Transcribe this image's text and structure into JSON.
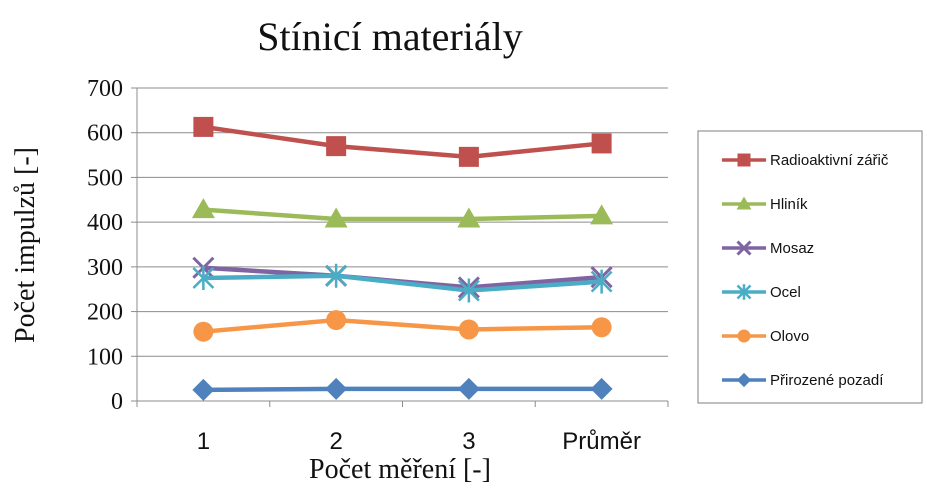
{
  "chart_data": {
    "type": "line",
    "title": "Stínicí materiály",
    "xlabel": "Počet měření [-]",
    "ylabel": "Počet impulzů [-]",
    "categories": [
      "1",
      "2",
      "3",
      "Průměr"
    ],
    "ylim": [
      0,
      700
    ],
    "yticks": [
      0,
      100,
      200,
      300,
      400,
      500,
      600,
      700
    ],
    "grid": true,
    "legend_position": "right",
    "series": [
      {
        "name": "Radioaktivní zářič",
        "values": [
          613,
          570,
          546,
          576
        ],
        "color": "#c0504d",
        "marker": "square"
      },
      {
        "name": "Hliník",
        "values": [
          428,
          407,
          407,
          414
        ],
        "color": "#9bbb59",
        "marker": "triangle"
      },
      {
        "name": "Mosaz",
        "values": [
          298,
          280,
          254,
          277
        ],
        "color": "#8064a2",
        "marker": "x"
      },
      {
        "name": "Ocel",
        "values": [
          275,
          280,
          247,
          267
        ],
        "color": "#4bacc6",
        "marker": "star"
      },
      {
        "name": "Olovo",
        "values": [
          155,
          181,
          160,
          165
        ],
        "color": "#f79646",
        "marker": "circle"
      },
      {
        "name": "Přirozené pozadí",
        "values": [
          25,
          27,
          27,
          27
        ],
        "color": "#4f81bd",
        "marker": "diamond"
      }
    ]
  }
}
